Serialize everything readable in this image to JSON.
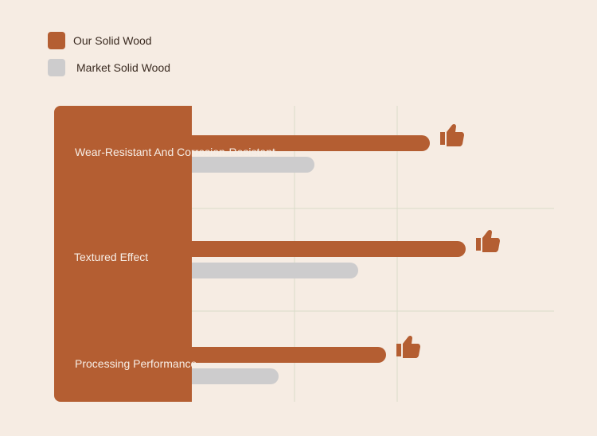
{
  "colors": {
    "accent": "#b45e32",
    "market": "#cdcccd",
    "background": "#f6ece3",
    "grid": "#d9dcc9"
  },
  "legend": [
    {
      "label": "Our Solid Wood",
      "color": "#b45e32"
    },
    {
      "label": "Market Solid Wood",
      "color": "#cdcccd"
    }
  ],
  "chart_data": {
    "type": "bar",
    "orientation": "horizontal",
    "categories": [
      "Wear-Resistant And Corrosion-Resistant",
      "Textured Effect",
      "Processing Performance"
    ],
    "series": [
      {
        "name": "Our Solid Wood",
        "values": [
          88,
          97,
          77
        ]
      },
      {
        "name": "Market Solid Wood",
        "values": [
          59,
          70,
          50
        ]
      }
    ],
    "xlim": [
      0,
      100
    ],
    "grid": true,
    "legend_position": "top-left",
    "marker_icon": "thumbs-up-icon"
  }
}
